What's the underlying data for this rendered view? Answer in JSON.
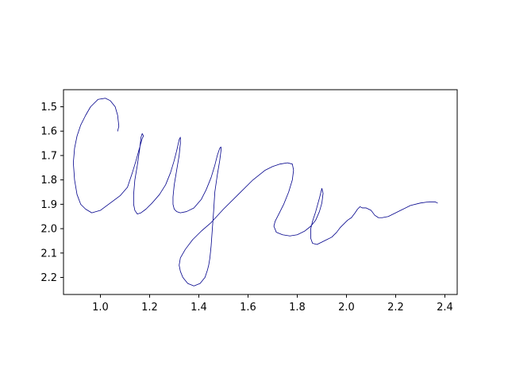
{
  "chart_data": {
    "type": "line",
    "title": "",
    "xlabel": "",
    "ylabel": "",
    "xlim": [
      0.85,
      2.45
    ],
    "ylim": [
      2.27,
      1.43
    ],
    "y_inverted": true,
    "grid": false,
    "legend": "none",
    "x_ticks": [
      {
        "value": 1.0,
        "label": "1.0"
      },
      {
        "value": 1.2,
        "label": "1.2"
      },
      {
        "value": 1.4,
        "label": "1.4"
      },
      {
        "value": 1.6,
        "label": "1.6"
      },
      {
        "value": 1.8,
        "label": "1.8"
      },
      {
        "value": 2.0,
        "label": "2.0"
      },
      {
        "value": 2.2,
        "label": "2.2"
      },
      {
        "value": 2.4,
        "label": "2.4"
      }
    ],
    "y_ticks": [
      {
        "value": 1.5,
        "label": "1.5"
      },
      {
        "value": 1.6,
        "label": "1.6"
      },
      {
        "value": 1.7,
        "label": "1.7"
      },
      {
        "value": 1.8,
        "label": "1.8"
      },
      {
        "value": 1.9,
        "label": "1.9"
      },
      {
        "value": 2.0,
        "label": "2.0"
      },
      {
        "value": 2.1,
        "label": "2.1"
      },
      {
        "value": 2.2,
        "label": "2.2"
      }
    ],
    "series": [
      {
        "color": "#00008b",
        "x": [
          1.07,
          1.075,
          1.07,
          1.06,
          1.04,
          1.02,
          0.99,
          0.96,
          0.94,
          0.92,
          0.905,
          0.895,
          0.89,
          0.895,
          0.905,
          0.92,
          0.94,
          0.965,
          1.0,
          1.04,
          1.08,
          1.11,
          1.13,
          1.145,
          1.16,
          1.17,
          1.175,
          1.17,
          1.165,
          1.16,
          1.15,
          1.14,
          1.135,
          1.135,
          1.14,
          1.15,
          1.165,
          1.185,
          1.21,
          1.24,
          1.265,
          1.285,
          1.3,
          1.31,
          1.32,
          1.325,
          1.325,
          1.32,
          1.31,
          1.3,
          1.295,
          1.295,
          1.3,
          1.31,
          1.325,
          1.35,
          1.38,
          1.41,
          1.43,
          1.45,
          1.465,
          1.475,
          1.485,
          1.49,
          1.49,
          1.485,
          1.475,
          1.465,
          1.46,
          1.455,
          1.45,
          1.445,
          1.44,
          1.435,
          1.425,
          1.405,
          1.38,
          1.355,
          1.335,
          1.325,
          1.32,
          1.325,
          1.345,
          1.375,
          1.41,
          1.45,
          1.5,
          1.56,
          1.62,
          1.67,
          1.7,
          1.73,
          1.76,
          1.78,
          1.785,
          1.78,
          1.765,
          1.745,
          1.725,
          1.71,
          1.705,
          1.715,
          1.74,
          1.77,
          1.8,
          1.83,
          1.855,
          1.875,
          1.89,
          1.9,
          1.905,
          1.9,
          1.89,
          1.875,
          1.862,
          1.855,
          1.855,
          1.862,
          1.88,
          1.9,
          1.92,
          1.94,
          1.96,
          1.975,
          1.99,
          2.005,
          2.02,
          2.035,
          2.045,
          2.055,
          2.065,
          2.08,
          2.1,
          2.115,
          2.13,
          2.145,
          2.17,
          2.2,
          2.23,
          2.26,
          2.3,
          2.335,
          2.36,
          2.37
        ],
        "y": [
          1.6,
          1.58,
          1.535,
          1.5,
          1.475,
          1.465,
          1.47,
          1.5,
          1.535,
          1.575,
          1.62,
          1.67,
          1.73,
          1.8,
          1.86,
          1.9,
          1.92,
          1.935,
          1.925,
          1.895,
          1.865,
          1.83,
          1.77,
          1.72,
          1.665,
          1.63,
          1.62,
          1.61,
          1.625,
          1.67,
          1.74,
          1.8,
          1.86,
          1.9,
          1.925,
          1.94,
          1.935,
          1.92,
          1.895,
          1.86,
          1.82,
          1.77,
          1.72,
          1.68,
          1.635,
          1.625,
          1.65,
          1.7,
          1.76,
          1.82,
          1.87,
          1.9,
          1.92,
          1.93,
          1.935,
          1.93,
          1.915,
          1.88,
          1.84,
          1.79,
          1.74,
          1.7,
          1.67,
          1.665,
          1.68,
          1.72,
          1.78,
          1.85,
          1.93,
          2.0,
          2.07,
          2.12,
          2.15,
          2.17,
          2.2,
          2.225,
          2.235,
          2.225,
          2.2,
          2.175,
          2.15,
          2.12,
          2.085,
          2.045,
          2.01,
          1.975,
          1.92,
          1.86,
          1.8,
          1.76,
          1.745,
          1.735,
          1.73,
          1.735,
          1.76,
          1.8,
          1.85,
          1.9,
          1.94,
          1.97,
          1.99,
          2.015,
          2.025,
          2.03,
          2.025,
          2.01,
          1.99,
          1.965,
          1.93,
          1.895,
          1.855,
          1.835,
          1.875,
          1.93,
          1.97,
          2.0,
          2.04,
          2.06,
          2.065,
          2.055,
          2.045,
          2.035,
          2.015,
          1.995,
          1.98,
          1.965,
          1.955,
          1.935,
          1.92,
          1.91,
          1.915,
          1.915,
          1.925,
          1.945,
          1.955,
          1.955,
          1.95,
          1.935,
          1.92,
          1.905,
          1.895,
          1.89,
          1.89,
          1.895
        ]
      }
    ]
  }
}
